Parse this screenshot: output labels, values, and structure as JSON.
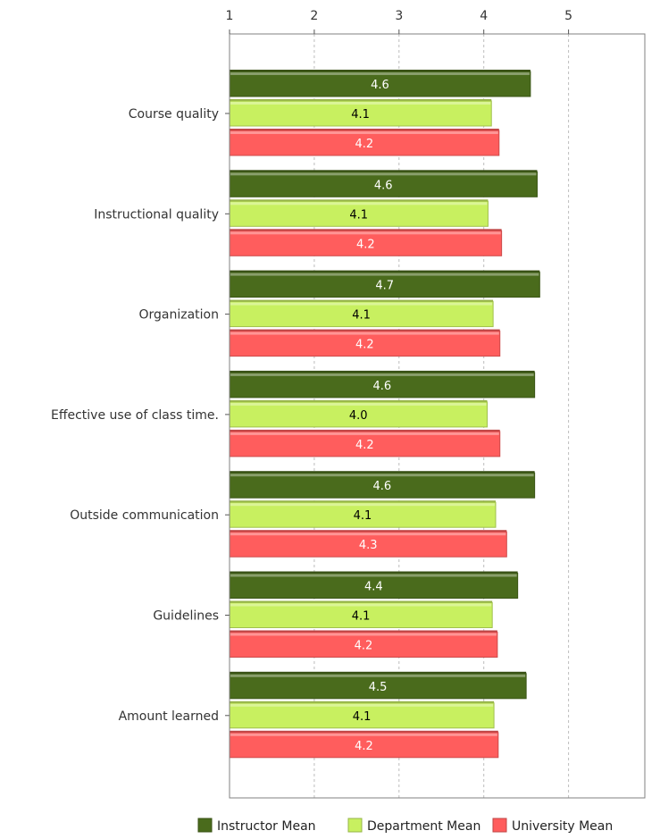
{
  "chart_data": {
    "type": "bar",
    "orientation": "horizontal",
    "title": "",
    "xlabel": "",
    "ylabel": "",
    "xlim": [
      1,
      5.9
    ],
    "x_ticks": [
      "1",
      "2",
      "3",
      "4",
      "5"
    ],
    "grid": "vertical dashed",
    "legend_position": "bottom-right",
    "categories": [
      "Course quality",
      "Instructional quality",
      "Organization",
      "Effective use of class time.",
      "Outside communication",
      "Guidelines",
      "Amount learned"
    ],
    "series": [
      {
        "name": "Instructor Mean",
        "color": "#4a6b1c",
        "label_color": "#ffffff",
        "values": [
          4.55,
          4.63,
          4.66,
          4.6,
          4.6,
          4.4,
          4.5
        ],
        "labels": [
          "4.6",
          "4.6",
          "4.7",
          "4.6",
          "4.6",
          "4.4",
          "4.5"
        ]
      },
      {
        "name": "Department Mean",
        "color": "#c8f060",
        "label_color": "#000000",
        "values": [
          4.09,
          4.05,
          4.11,
          4.04,
          4.14,
          4.1,
          4.12
        ],
        "labels": [
          "4.1",
          "4.1",
          "4.1",
          "4.0",
          "4.1",
          "4.1",
          "4.1"
        ]
      },
      {
        "name": "University Mean",
        "color": "#ff5d5d",
        "label_color": "#ffffff",
        "values": [
          4.18,
          4.21,
          4.19,
          4.19,
          4.27,
          4.16,
          4.17
        ],
        "labels": [
          "4.2",
          "4.2",
          "4.2",
          "4.2",
          "4.3",
          "4.2",
          "4.2"
        ]
      }
    ]
  }
}
